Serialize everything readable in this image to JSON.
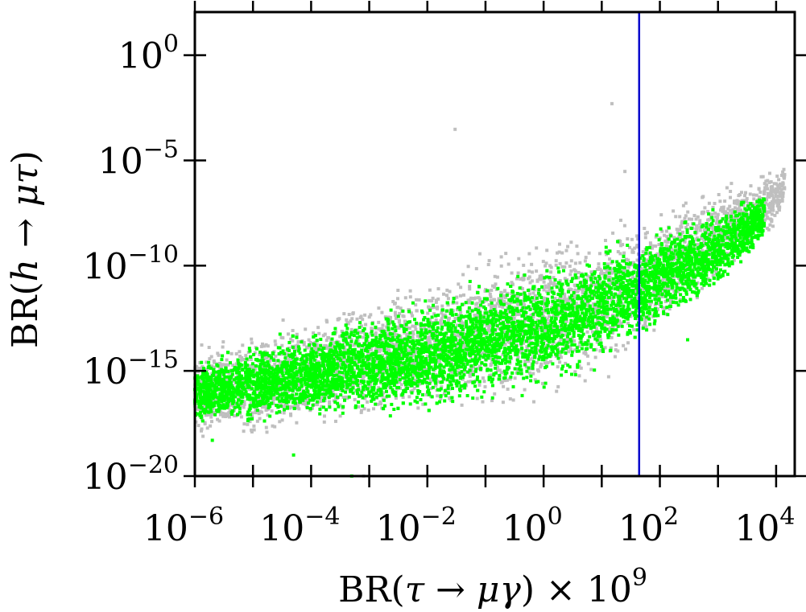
{
  "chart_data": {
    "type": "scatter",
    "title": "",
    "x_axis": {
      "label_parts": [
        "BR(",
        "τ",
        " → ",
        "μγ",
        ") × 10",
        "9"
      ],
      "scale": "log10",
      "range_exp": [
        -6,
        4.32
      ],
      "tick_labels": [
        {
          "value_exp": -6,
          "base": "10",
          "exp": "−6"
        },
        {
          "value_exp": -4,
          "base": "10",
          "exp": "−4"
        },
        {
          "value_exp": -2,
          "base": "10",
          "exp": "−2"
        },
        {
          "value_exp": 0,
          "base": "10",
          "exp": "0"
        },
        {
          "value_exp": 2,
          "base": "10",
          "exp": "2"
        },
        {
          "value_exp": 4,
          "base": "10",
          "exp": "4"
        }
      ]
    },
    "y_axis": {
      "label_parts": [
        "BR(",
        "h",
        " → ",
        "μτ",
        ")"
      ],
      "scale": "log10",
      "range_exp": [
        -20,
        2.05
      ],
      "tick_labels": [
        {
          "value_exp": 0,
          "base": "10",
          "exp": "0"
        },
        {
          "value_exp": -5,
          "base": "10",
          "exp": "−5"
        },
        {
          "value_exp": -10,
          "base": "10",
          "exp": "−10"
        },
        {
          "value_exp": -15,
          "base": "10",
          "exp": "−15"
        },
        {
          "value_exp": -20,
          "base": "10",
          "exp": "−20"
        }
      ]
    },
    "grid": false,
    "legend": "none",
    "vertical_line": {
      "x": 44,
      "color": "#0000cc"
    },
    "series": [
      {
        "color": "#bfbfbf",
        "note_points": "log10 x, log10 y samples of the upper envelope region",
        "band": {
          "x_exp": [
            -6,
            -5,
            -4,
            -3,
            -2,
            -1,
            0,
            1,
            2,
            3,
            4,
            4.15
          ],
          "y_upper_exp": [
            -13.5,
            -13.0,
            -12.0,
            -11.2,
            -10.2,
            -9.2,
            -8.3,
            -7.6,
            -6.8,
            -6.0,
            -5.2,
            -5.0
          ],
          "y_lower_exp": [
            -18.5,
            -18.6,
            -18.2,
            -17.8,
            -17.6,
            -17.2,
            -16.7,
            -15.8,
            -13.5,
            -11.0,
            -8.5,
            -7.0
          ]
        },
        "outliers": [
          {
            "x": 1.0,
            "y": 3.2e-14
          },
          {
            "x": 0.03,
            "y": 0.0003
          },
          {
            "x": 15,
            "y": 0.005
          },
          {
            "x": 0.0008,
            "y": 1e-20
          },
          {
            "x": 1e-05,
            "y": 1e-20
          },
          {
            "x": 25,
            "y": 3e-06
          }
        ]
      },
      {
        "color": "#00ff00",
        "band": {
          "x_exp": [
            -6,
            -5,
            -4,
            -3,
            -2,
            -1,
            0,
            1,
            2,
            3,
            3.8
          ],
          "y_upper_exp": [
            -14.5,
            -13.5,
            -12.8,
            -12.0,
            -11.3,
            -10.4,
            -9.6,
            -8.8,
            -7.8,
            -7.0,
            -6.3
          ],
          "y_lower_exp": [
            -17.6,
            -17.9,
            -17.6,
            -17.4,
            -17.2,
            -16.8,
            -16.2,
            -15.0,
            -13.3,
            -11.5,
            -9.0
          ]
        },
        "outliers": [
          {
            "x": 0.0005,
            "y": 1e-20
          },
          {
            "x": 2e-06,
            "y": 5e-19
          },
          {
            "x": 5e-05,
            "y": 1e-19
          },
          {
            "x": 300,
            "y": 3e-14
          },
          {
            "x": 2000,
            "y": 5e-10
          }
        ]
      }
    ]
  }
}
